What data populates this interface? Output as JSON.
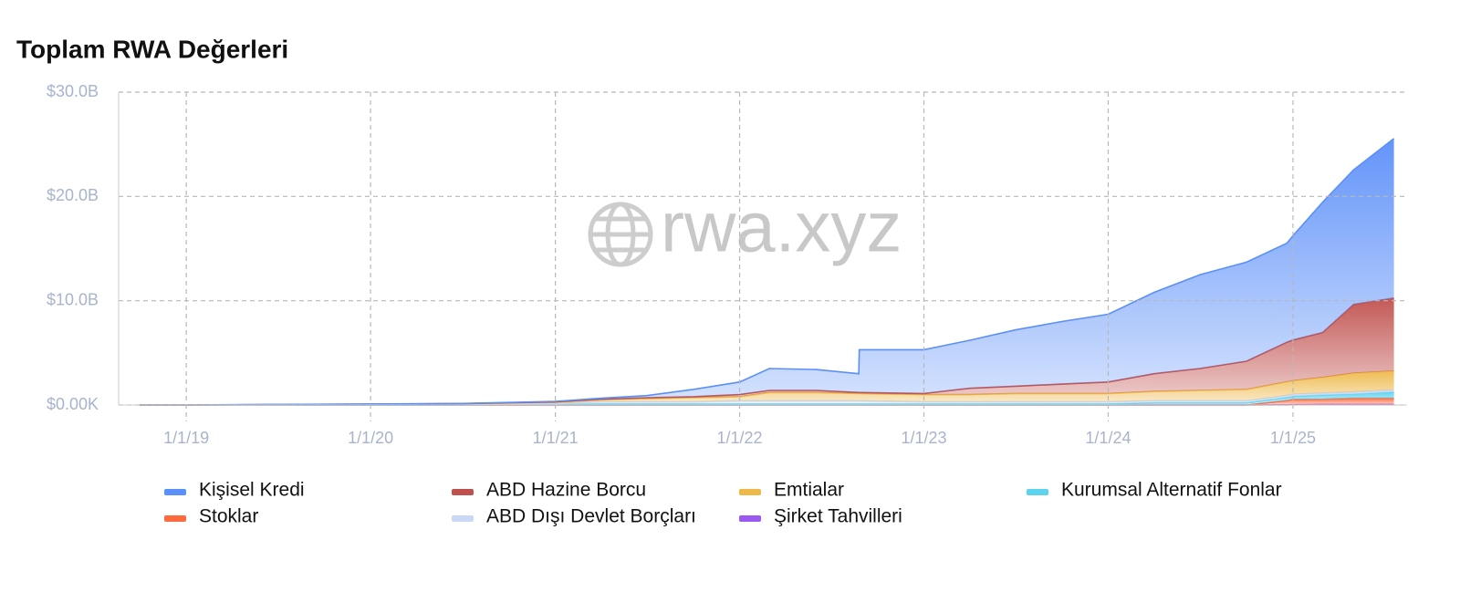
{
  "chart_data": {
    "type": "stacked_area",
    "title": "Toplam RWA Değerleri",
    "watermark": "rwa.xyz",
    "x": [
      "2018-10-01",
      "2019-01-01",
      "2019-07-01",
      "2020-01-01",
      "2020-07-01",
      "2021-01-01",
      "2021-04-01",
      "2021-07-01",
      "2021-10-01",
      "2022-01-01",
      "2022-03-01",
      "2022-06-01",
      "2022-08-25",
      "2022-08-26",
      "2023-01-01",
      "2023-04-01",
      "2023-07-01",
      "2023-10-01",
      "2024-01-01",
      "2024-04-01",
      "2024-07-01",
      "2024-10-01",
      "2024-12-20",
      "2025-01-01",
      "2025-03-01",
      "2025-05-01",
      "2025-07-20"
    ],
    "series": [
      {
        "name": "Şirket Tahvilleri",
        "color": "#9b59f0",
        "values": [
          0,
          0,
          0,
          0,
          0,
          0,
          0,
          0,
          0,
          0,
          0,
          0,
          0,
          0,
          0,
          0,
          0,
          0,
          0,
          0,
          0,
          0,
          0.02,
          0.03,
          0.05,
          0.05,
          0.05
        ]
      },
      {
        "name": "Stoklar",
        "color": "#ff6a3d",
        "values": [
          0,
          0,
          0,
          0,
          0,
          0,
          0,
          0,
          0,
          0,
          0,
          0,
          0,
          0,
          0,
          0,
          0,
          0,
          0,
          0,
          0,
          0,
          0.4,
          0.5,
          0.5,
          0.6,
          0.6
        ]
      },
      {
        "name": "Kurumsal Alternatif Fonlar",
        "color": "#5dd3f0",
        "values": [
          0,
          0,
          0,
          0,
          0,
          0.05,
          0.1,
          0.1,
          0.1,
          0.1,
          0.1,
          0.1,
          0.1,
          0.1,
          0.1,
          0.1,
          0.1,
          0.1,
          0.1,
          0.2,
          0.2,
          0.2,
          0.3,
          0.3,
          0.4,
          0.4,
          0.6
        ]
      },
      {
        "name": "ABD Dışı Devlet Borçları",
        "color": "#c9d8f5",
        "values": [
          0,
          0,
          0.02,
          0.05,
          0.08,
          0.1,
          0.2,
          0.2,
          0.2,
          0.3,
          0.3,
          0.3,
          0.3,
          0.3,
          0.2,
          0.2,
          0.2,
          0.2,
          0.2,
          0.2,
          0.2,
          0.2,
          0.2,
          0.2,
          0.2,
          0.2,
          0.2
        ]
      },
      {
        "name": "Emtialar",
        "color": "#eeb94a",
        "values": [
          0,
          0,
          0.02,
          0.03,
          0.05,
          0.1,
          0.2,
          0.3,
          0.4,
          0.4,
          0.8,
          0.8,
          0.7,
          0.7,
          0.7,
          0.7,
          0.8,
          0.8,
          0.8,
          0.9,
          1.0,
          1.1,
          1.3,
          1.3,
          1.5,
          1.8,
          1.8
        ]
      },
      {
        "name": "ABD Hazine Borcu",
        "color": "#c0504d",
        "values": [
          0,
          0,
          0,
          0,
          0,
          0.05,
          0.05,
          0.1,
          0.1,
          0.2,
          0.2,
          0.2,
          0.1,
          0.1,
          0.1,
          0.6,
          0.7,
          0.9,
          1.1,
          1.7,
          2.1,
          2.7,
          3.8,
          3.9,
          4.3,
          6.6,
          7.0
        ]
      },
      {
        "name": "Kişisel Kredi",
        "color": "#5b8ff9",
        "values": [
          0,
          0,
          0.01,
          0.02,
          0.02,
          0.05,
          0.1,
          0.2,
          0.7,
          1.2,
          2.1,
          2.0,
          1.8,
          4.1,
          4.2,
          4.6,
          5.4,
          6.0,
          6.5,
          7.8,
          9.0,
          9.5,
          9.5,
          10.0,
          12.5,
          12.9,
          15.3
        ]
      }
    ],
    "legend_order": [
      6,
      5,
      4,
      2,
      1,
      3,
      0
    ],
    "xlim": [
      "2018-08-20",
      "2025-08-15"
    ],
    "xticks": [
      {
        "value": "2019-01-01",
        "label": "1/1/19"
      },
      {
        "value": "2020-01-01",
        "label": "1/1/20"
      },
      {
        "value": "2021-01-01",
        "label": "1/1/21"
      },
      {
        "value": "2022-01-01",
        "label": "1/1/22"
      },
      {
        "value": "2023-01-01",
        "label": "1/1/23"
      },
      {
        "value": "2024-01-01",
        "label": "1/1/24"
      },
      {
        "value": "2025-01-01",
        "label": "1/1/25"
      }
    ],
    "ylim": [
      0,
      30
    ],
    "yticks": [
      {
        "value": 0,
        "label": "$0.00K"
      },
      {
        "value": 10,
        "label": "$10.0B"
      },
      {
        "value": 20,
        "label": "$20.0B"
      },
      {
        "value": 30,
        "label": "$30.0B"
      }
    ],
    "grid": true
  }
}
